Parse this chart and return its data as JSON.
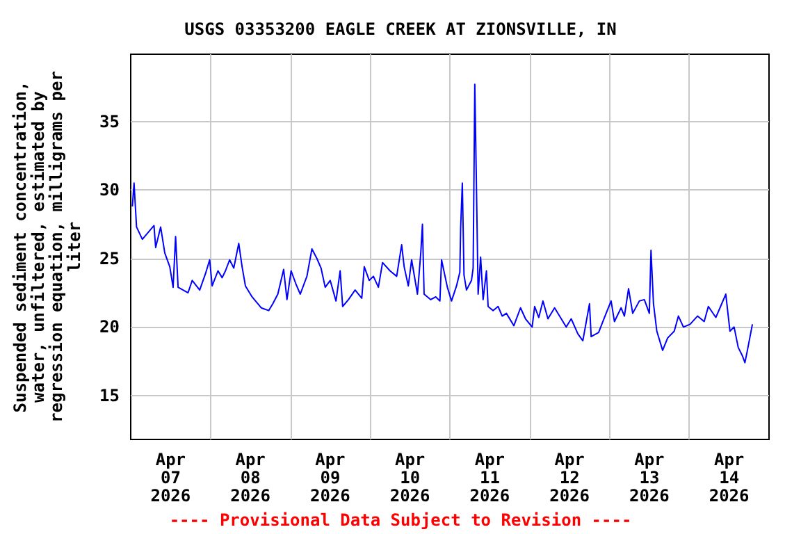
{
  "chart_data": {
    "type": "line",
    "title": "USGS 03353200 EAGLE CREEK AT ZIONSVILLE, IN",
    "ylabel": "Suspended sediment concentration, water, unfiltered, estimated by regression equation, milligrams per liter",
    "annotations": [
      "---- Provisional Data Subject to Revision ----"
    ],
    "x": [
      "2026-04-07T00:30",
      "2026-04-07T01:00",
      "2026-04-07T01:45",
      "2026-04-07T03:30",
      "2026-04-07T07:00",
      "2026-04-07T07:30",
      "2026-04-07T09:00",
      "2026-04-07T10:15",
      "2026-04-07T11:45",
      "2026-04-07T12:45",
      "2026-04-07T13:30",
      "2026-04-07T14:15",
      "2026-04-07T17:15",
      "2026-04-07T18:30",
      "2026-04-07T20:45",
      "2026-04-07T22:30",
      "2026-04-07T23:45",
      "2026-04-08T00:30",
      "2026-04-08T02:15",
      "2026-04-08T03:30",
      "2026-04-08T04:30",
      "2026-04-08T05:45",
      "2026-04-08T07:00",
      "2026-04-08T08:30",
      "2026-04-08T09:30",
      "2026-04-08T10:30",
      "2026-04-08T12:30",
      "2026-04-08T15:15",
      "2026-04-08T17:30",
      "2026-04-08T18:45",
      "2026-04-08T20:15",
      "2026-04-08T22:00",
      "2026-04-08T23:00",
      "2026-04-09T00:15",
      "2026-04-09T01:45",
      "2026-04-09T03:00",
      "2026-04-09T05:00",
      "2026-04-09T06:30",
      "2026-04-09T08:00",
      "2026-04-09T09:15",
      "2026-04-09T10:30",
      "2026-04-09T12:00",
      "2026-04-09T13:45",
      "2026-04-09T15:00",
      "2026-04-09T15:45",
      "2026-04-09T17:30",
      "2026-04-09T19:30",
      "2026-04-09T21:30",
      "2026-04-09T22:15",
      "2026-04-09T23:45",
      "2026-04-10T01:00",
      "2026-04-10T02:30",
      "2026-04-10T03:45",
      "2026-04-10T06:00",
      "2026-04-10T08:00",
      "2026-04-10T09:30",
      "2026-04-10T10:15",
      "2026-04-10T11:30",
      "2026-04-10T12:30",
      "2026-04-10T14:15",
      "2026-04-10T15:15",
      "2026-04-10T15:45",
      "2026-04-10T16:15",
      "2026-04-10T18:15",
      "2026-04-10T19:45",
      "2026-04-10T21:00",
      "2026-04-10T21:30",
      "2026-04-10T23:15",
      "2026-04-11T00:30",
      "2026-04-11T02:00",
      "2026-04-11T03:00",
      "2026-04-11T03:15",
      "2026-04-11T03:45",
      "2026-04-11T04:15",
      "2026-04-11T05:00",
      "2026-04-11T06:30",
      "2026-04-11T07:00",
      "2026-04-11T07:30",
      "2026-04-11T08:00",
      "2026-04-11T08:30",
      "2026-04-11T09:15",
      "2026-04-11T10:00",
      "2026-04-11T11:00",
      "2026-04-11T11:30",
      "2026-04-11T13:00",
      "2026-04-11T14:30",
      "2026-04-11T15:45",
      "2026-04-11T17:00",
      "2026-04-11T19:15",
      "2026-04-11T21:15",
      "2026-04-11T22:45",
      "2026-04-12T00:45",
      "2026-04-12T01:30",
      "2026-04-12T02:45",
      "2026-04-12T04:00",
      "2026-04-12T05:30",
      "2026-04-12T07:30",
      "2026-04-12T09:15",
      "2026-04-12T11:00",
      "2026-04-12T12:30",
      "2026-04-12T14:30",
      "2026-04-12T16:00",
      "2026-04-12T18:00",
      "2026-04-12T18:30",
      "2026-04-12T20:45",
      "2026-04-12T22:30",
      "2026-04-13T00:30",
      "2026-04-13T01:30",
      "2026-04-13T03:30",
      "2026-04-13T04:30",
      "2026-04-13T05:45",
      "2026-04-13T07:00",
      "2026-04-13T09:00",
      "2026-04-13T10:30",
      "2026-04-13T12:00",
      "2026-04-13T12:30",
      "2026-04-13T13:15",
      "2026-04-13T14:15",
      "2026-04-13T16:00",
      "2026-04-13T17:30",
      "2026-04-13T19:30",
      "2026-04-13T20:45",
      "2026-04-13T22:15",
      "2026-04-14T00:15",
      "2026-04-14T02:30",
      "2026-04-14T04:30",
      "2026-04-14T05:45",
      "2026-04-14T08:00",
      "2026-04-14T09:15",
      "2026-04-14T11:00",
      "2026-04-14T12:15",
      "2026-04-14T13:30",
      "2026-04-14T14:45",
      "2026-04-14T16:00",
      "2026-04-14T16:45",
      "2026-04-14T17:30",
      "2026-04-14T19:00"
    ],
    "series": [
      {
        "color": "#0000ff",
        "values": [
          28.8,
          30.5,
          27.3,
          26.4,
          27.4,
          25.8,
          27.3,
          25.4,
          24.4,
          22.9,
          26.6,
          22.9,
          22.5,
          23.4,
          22.7,
          23.9,
          24.9,
          23.0,
          24.1,
          23.6,
          24.1,
          24.9,
          24.3,
          26.1,
          24.4,
          23.0,
          22.2,
          21.4,
          21.2,
          21.7,
          22.4,
          24.2,
          22.0,
          24.1,
          23.1,
          22.4,
          23.7,
          25.7,
          25.0,
          24.3,
          22.9,
          23.4,
          21.9,
          24.1,
          21.5,
          22.0,
          22.7,
          22.1,
          24.4,
          23.4,
          23.7,
          22.9,
          24.7,
          24.1,
          23.7,
          26.0,
          24.4,
          23.0,
          24.9,
          22.4,
          25.4,
          27.5,
          22.4,
          22.0,
          22.2,
          21.9,
          24.9,
          22.9,
          21.9,
          23.0,
          24.0,
          27.3,
          30.5,
          23.8,
          22.7,
          23.4,
          24.3,
          37.7,
          30.2,
          22.4,
          25.1,
          22.0,
          24.1,
          21.5,
          21.2,
          21.5,
          20.8,
          21.0,
          20.1,
          21.4,
          20.6,
          20.0,
          21.5,
          20.7,
          21.9,
          20.6,
          21.4,
          20.7,
          20.0,
          20.6,
          19.5,
          19.0,
          21.7,
          19.3,
          19.6,
          20.7,
          21.9,
          20.4,
          21.4,
          20.8,
          22.8,
          21.0,
          21.9,
          22.0,
          21.0,
          25.6,
          21.7,
          19.7,
          18.3,
          19.2,
          19.7,
          20.8,
          20.0,
          20.2,
          20.8,
          20.4,
          21.5,
          20.7,
          21.4,
          22.4,
          19.7,
          20.0,
          18.5,
          17.9,
          17.4,
          18.3,
          20.2
        ]
      }
    ],
    "xlim": [
      "2026-04-07T00:00",
      "2026-04-15T00:00"
    ],
    "xticks": [
      {
        "value": "2026-04-07T12:00",
        "label": "Apr\n07\n2026"
      },
      {
        "value": "2026-04-08T00:00",
        "label": null
      },
      {
        "value": "2026-04-08T12:00",
        "label": "Apr\n08\n2026"
      },
      {
        "value": "2026-04-09T00:00",
        "label": null
      },
      {
        "value": "2026-04-09T12:00",
        "label": "Apr\n09\n2026"
      },
      {
        "value": "2026-04-10T00:00",
        "label": null
      },
      {
        "value": "2026-04-10T12:00",
        "label": "Apr\n10\n2026"
      },
      {
        "value": "2026-04-11T00:00",
        "label": null
      },
      {
        "value": "2026-04-11T12:00",
        "label": "Apr\n11\n2026"
      },
      {
        "value": "2026-04-12T00:00",
        "label": null
      },
      {
        "value": "2026-04-12T12:00",
        "label": "Apr\n12\n2026"
      },
      {
        "value": "2026-04-13T00:00",
        "label": null
      },
      {
        "value": "2026-04-13T12:00",
        "label": "Apr\n13\n2026"
      },
      {
        "value": "2026-04-14T00:00",
        "label": null
      },
      {
        "value": "2026-04-14T12:00",
        "label": "Apr\n14\n2026"
      }
    ],
    "ylim": [
      11.8,
      39.9
    ],
    "yticks": [
      15,
      20,
      25,
      30,
      35
    ],
    "grid": true
  }
}
